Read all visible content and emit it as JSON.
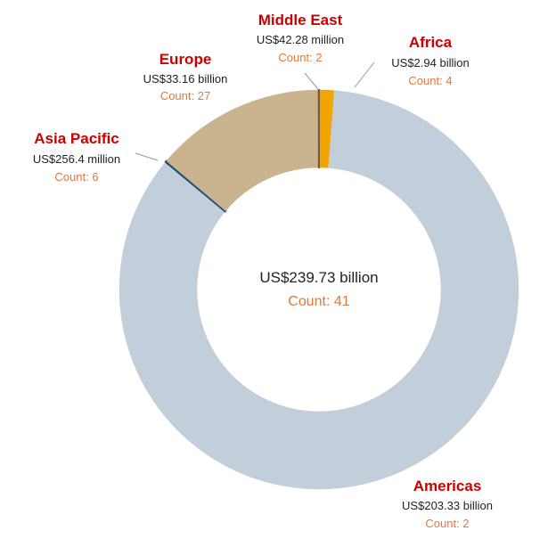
{
  "chart_data": {
    "type": "pie",
    "variant": "donut",
    "title": "",
    "center": {
      "total_label": "US$239.73 billion",
      "count_label": "Count: 41"
    },
    "slices": [
      {
        "name": "Africa",
        "value_billion": 2.94,
        "value_label": "US$2.94 billion",
        "count": 4,
        "count_label": "Count: 4",
        "color": "#F0A500"
      },
      {
        "name": "Americas",
        "value_billion": 203.33,
        "value_label": "US$203.33 billion",
        "count": 2,
        "count_label": "Count: 2",
        "color": "#C2CFDA"
      },
      {
        "name": "Asia Pacific",
        "value_billion": 0.2564,
        "value_label": "US$256.4 million",
        "count": 6,
        "count_label": "Count: 6",
        "color": "#1F4E79"
      },
      {
        "name": "Europe",
        "value_billion": 33.16,
        "value_label": "US$33.16 billion",
        "count": 27,
        "count_label": "Count: 27",
        "color": "#C9B48F"
      },
      {
        "name": "Middle East",
        "value_billion": 0.04228,
        "value_label": "US$42.28 million",
        "count": 2,
        "count_label": "Count: 2",
        "color": "#7A5C2E"
      }
    ],
    "legend": "none",
    "label_name_color": "#CC0000",
    "label_count_color": "#E07840"
  }
}
